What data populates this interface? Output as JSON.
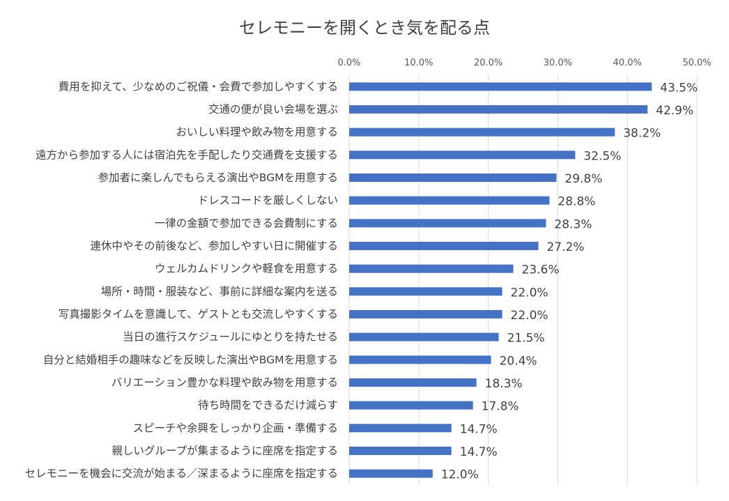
{
  "chart_data": {
    "type": "bar",
    "orientation": "horizontal",
    "title": "セレモニーを開くとき気を配る点",
    "xlabel": "",
    "ylabel": "",
    "xlim": [
      0,
      50
    ],
    "x_axis_position": "top",
    "ticks": [
      "0.0%",
      "10.0%",
      "20.0%",
      "30.0%",
      "40.0%",
      "50.0%"
    ],
    "grid": true,
    "legend": "none",
    "bar_color": "#4472c4",
    "categories": [
      "費用を抑えて、少なめのご祝儀・会費で参加しやすくする",
      "交通の便が良い会場を選ぶ",
      "おいしい料理や飲み物を用意する",
      "遠方から参加する人には宿泊先を手配したり交通費を支援する",
      "参加者に楽しんでもらえる演出やBGMを用意する",
      "ドレスコードを厳しくしない",
      "一律の金額で参加できる会費制にする",
      "連休中やその前後など、参加しやすい日に開催する",
      "ウェルカムドリンクや軽食を用意する",
      "場所・時間・服装など、事前に詳細な案内を送る",
      "写真撮影タイムを意識して、ゲストとも交流しやすくする",
      "当日の進行スケジュールにゆとりを持たせる",
      "自分と結婚相手の趣味などを反映した演出やBGMを用意する",
      "バリエーション豊かな料理や飲み物を用意する",
      "待ち時間をできるだけ減らす",
      "スピーチや余興をしっかり企画・準備する",
      "親しいグループが集まるように座席を指定する",
      "セレモニーを機会に交流が始まる／深まるように座席を指定する"
    ],
    "values": [
      43.5,
      42.9,
      38.2,
      32.5,
      29.8,
      28.8,
      28.3,
      27.2,
      23.6,
      22.0,
      22.0,
      21.5,
      20.4,
      18.3,
      17.8,
      14.7,
      14.7,
      12.0
    ],
    "value_labels": [
      "43.5%",
      "42.9%",
      "38.2%",
      "32.5%",
      "29.8%",
      "28.8%",
      "28.3%",
      "27.2%",
      "23.6%",
      "22.0%",
      "22.0%",
      "21.5%",
      "20.4%",
      "18.3%",
      "17.8%",
      "14.7%",
      "14.7%",
      "12.0%"
    ]
  }
}
